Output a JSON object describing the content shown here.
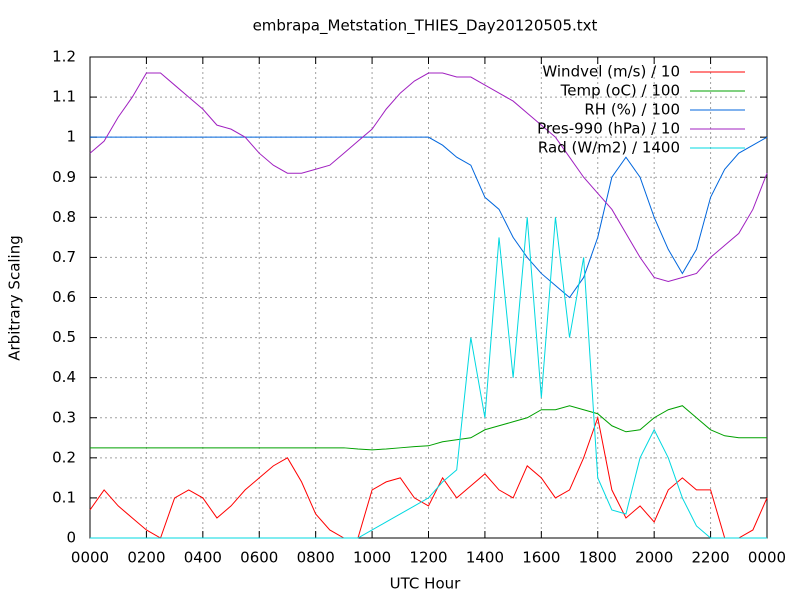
{
  "chart_data": {
    "type": "line",
    "title": "embrapa_Metstation_THIES_Day20120505.txt",
    "xlabel": "UTC Hour",
    "ylabel": "Arbitrary Scaling",
    "x": [
      0,
      0.5,
      1,
      1.5,
      2,
      2.5,
      3,
      3.5,
      4,
      4.5,
      5,
      5.5,
      6,
      6.5,
      7,
      7.5,
      8,
      8.5,
      9,
      9.5,
      10,
      10.5,
      11,
      11.5,
      12,
      12.5,
      13,
      13.5,
      14,
      14.5,
      15,
      15.5,
      16,
      16.5,
      17,
      17.5,
      18,
      18.5,
      19,
      19.5,
      20,
      20.5,
      21,
      21.5,
      22,
      22.5,
      23,
      23.5,
      24
    ],
    "xlim": [
      0,
      24
    ],
    "xticks": [
      {
        "value": 0,
        "label": "0000"
      },
      {
        "value": 2,
        "label": "0200"
      },
      {
        "value": 4,
        "label": "0400"
      },
      {
        "value": 6,
        "label": "0600"
      },
      {
        "value": 8,
        "label": "0800"
      },
      {
        "value": 10,
        "label": "1000"
      },
      {
        "value": 12,
        "label": "1200"
      },
      {
        "value": 14,
        "label": "1400"
      },
      {
        "value": 16,
        "label": "1600"
      },
      {
        "value": 18,
        "label": "1800"
      },
      {
        "value": 20,
        "label": "2000"
      },
      {
        "value": 22,
        "label": "2200"
      },
      {
        "value": 24,
        "label": "0000"
      }
    ],
    "ylim": [
      0,
      1.2
    ],
    "yticks": [
      0,
      0.1,
      0.2,
      0.3,
      0.4,
      0.5,
      0.6,
      0.7,
      0.8,
      0.9,
      1,
      1.1,
      1.2
    ],
    "grid": true,
    "legend": "top-right",
    "series": [
      {
        "name": "Windvel (m/s) / 10",
        "color": "#ff0000",
        "values": [
          0.07,
          0.12,
          0.08,
          0.05,
          0.02,
          0.0,
          0.1,
          0.12,
          0.1,
          0.05,
          0.08,
          0.12,
          0.15,
          0.18,
          0.2,
          0.14,
          0.06,
          0.02,
          0.0,
          0.0,
          0.12,
          0.14,
          0.15,
          0.1,
          0.08,
          0.15,
          0.1,
          0.13,
          0.16,
          0.12,
          0.1,
          0.18,
          0.15,
          0.1,
          0.12,
          0.2,
          0.3,
          0.12,
          0.05,
          0.08,
          0.04,
          0.12,
          0.15,
          0.12,
          0.12,
          0.0,
          0.0,
          0.02,
          0.1
        ]
      },
      {
        "name": "Temp (oC) / 100",
        "color": "#00a000",
        "values": [
          0.225,
          0.225,
          0.225,
          0.225,
          0.225,
          0.225,
          0.225,
          0.225,
          0.225,
          0.225,
          0.225,
          0.225,
          0.225,
          0.225,
          0.225,
          0.225,
          0.225,
          0.225,
          0.225,
          0.222,
          0.22,
          0.222,
          0.225,
          0.228,
          0.23,
          0.24,
          0.245,
          0.25,
          0.27,
          0.28,
          0.29,
          0.3,
          0.32,
          0.32,
          0.33,
          0.32,
          0.31,
          0.28,
          0.265,
          0.27,
          0.3,
          0.32,
          0.33,
          0.3,
          0.27,
          0.255,
          0.25,
          0.25,
          0.25
        ]
      },
      {
        "name": "RH (%) / 100",
        "color": "#0066dd",
        "values": [
          1,
          1,
          1,
          1,
          1,
          1,
          1,
          1,
          1,
          1,
          1,
          1,
          1,
          1,
          1,
          1,
          1,
          1,
          1,
          1,
          1,
          1,
          1,
          1,
          1,
          0.98,
          0.95,
          0.93,
          0.85,
          0.82,
          0.75,
          0.7,
          0.66,
          0.63,
          0.6,
          0.65,
          0.75,
          0.9,
          0.95,
          0.9,
          0.8,
          0.72,
          0.66,
          0.72,
          0.85,
          0.92,
          0.96,
          0.98,
          1
        ]
      },
      {
        "name": "Pres-990 (hPa) / 10",
        "color": "#a020c0",
        "values": [
          0.96,
          0.99,
          1.05,
          1.1,
          1.16,
          1.16,
          1.13,
          1.1,
          1.07,
          1.03,
          1.02,
          1.0,
          0.96,
          0.93,
          0.91,
          0.91,
          0.92,
          0.93,
          0.96,
          0.99,
          1.02,
          1.07,
          1.11,
          1.14,
          1.16,
          1.16,
          1.15,
          1.15,
          1.13,
          1.11,
          1.09,
          1.06,
          1.03,
          1.0,
          0.95,
          0.9,
          0.86,
          0.82,
          0.76,
          0.7,
          0.65,
          0.64,
          0.65,
          0.66,
          0.7,
          0.73,
          0.76,
          0.82,
          0.91
        ]
      },
      {
        "name": "Rad (W/m2) / 1400",
        "color": "#00d8e0",
        "values": [
          0,
          0,
          0,
          0,
          0,
          0,
          0,
          0,
          0,
          0,
          0,
          0,
          0,
          0,
          0,
          0,
          0,
          0,
          0,
          0,
          0.02,
          0.04,
          0.06,
          0.08,
          0.1,
          0.14,
          0.17,
          0.5,
          0.3,
          0.75,
          0.4,
          0.8,
          0.35,
          0.8,
          0.5,
          0.7,
          0.15,
          0.07,
          0.06,
          0.2,
          0.27,
          0.2,
          0.1,
          0.03,
          0,
          0,
          0,
          0,
          0
        ]
      }
    ]
  }
}
